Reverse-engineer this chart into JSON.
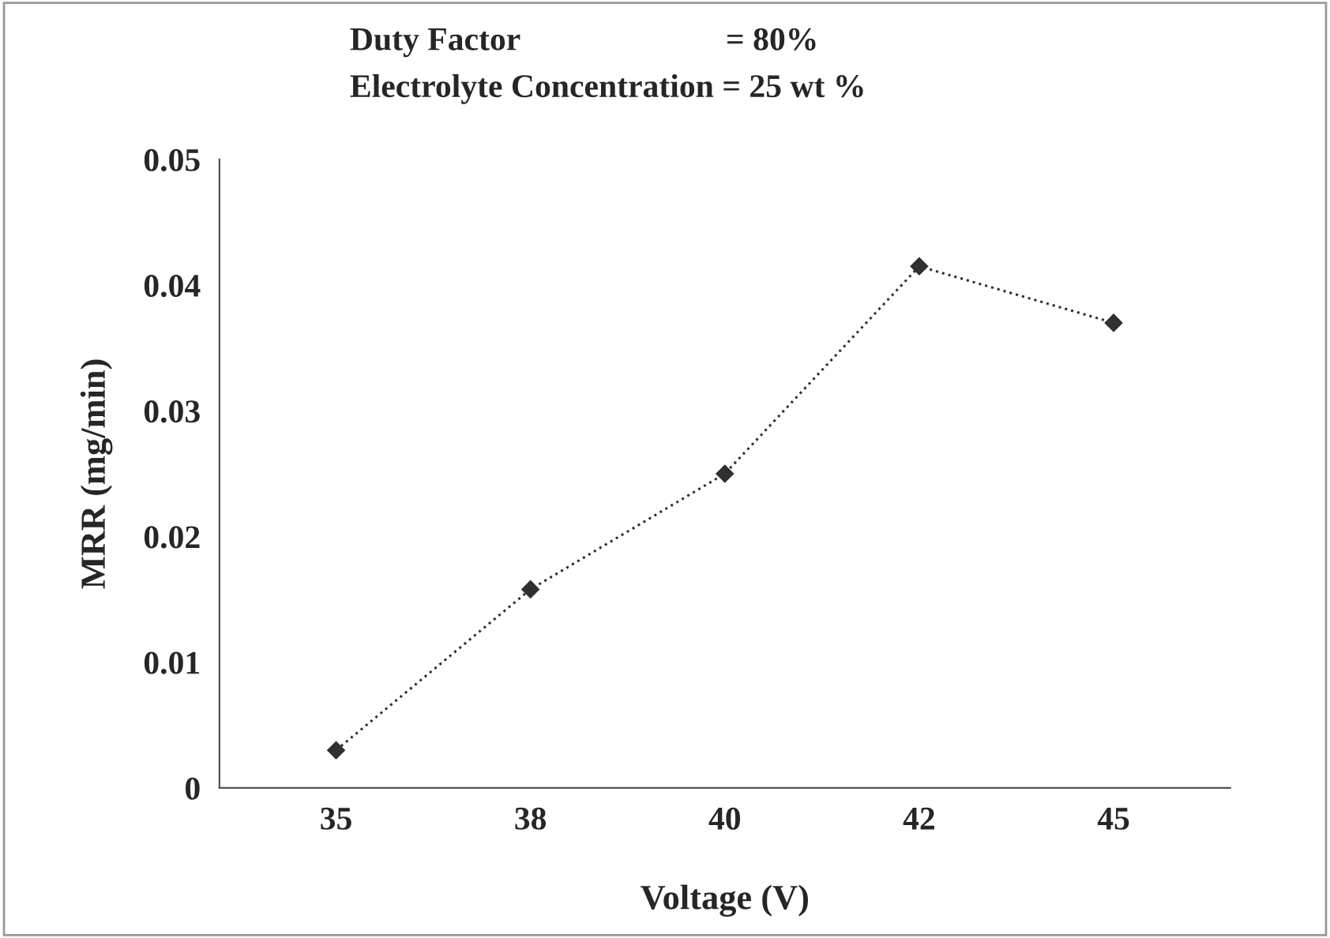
{
  "chart_data": {
    "type": "line",
    "xlabel": "Voltage (V)",
    "ylabel": "MRR (mg/min)",
    "annotations": [
      "Duty Factor                         = 80%",
      "Electrolyte Concentration = 25 wt %"
    ],
    "categories": [
      "35",
      "38",
      "40",
      "42",
      "45"
    ],
    "series": [
      {
        "color": "#303030",
        "values": [
          0.003,
          0.0158,
          0.025,
          0.0415,
          0.037
        ]
      }
    ],
    "ylim": [
      0,
      0.05
    ],
    "yticks": [
      0,
      0.01,
      0.02,
      0.03,
      0.04,
      0.05
    ],
    "grid": false,
    "legend": false,
    "marker": "diamond",
    "line_style": "dotted"
  }
}
